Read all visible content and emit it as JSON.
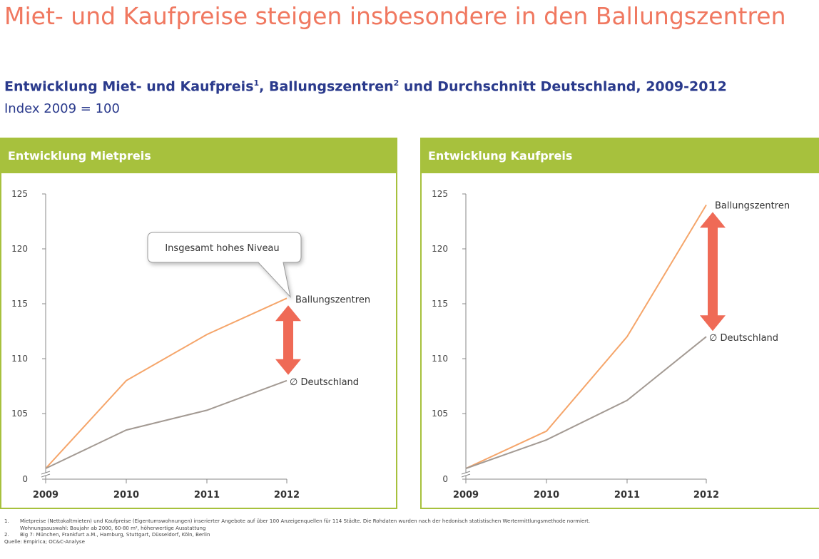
{
  "title": "Miet- und Kaufpreise steigen insbesondere in den Ballungszentren",
  "subtitle": {
    "part1": "Entwicklung Miet- und Kaufpreis",
    "sup1": "1",
    "part2": ", Ballungszentren",
    "sup2": "2",
    "part3": " und Durchschnitt Deutschland, 2009-2012"
  },
  "index_note": "Index 2009 = 100",
  "colors": {
    "accent": "#a7c13d",
    "ballungszentren": "#f5a56a",
    "deutschland": "#a39a93",
    "arrow": "#ef6a56",
    "title": "#f07860",
    "subtitle": "#2a3a8c"
  },
  "chart_data": [
    {
      "type": "line",
      "title": "Entwicklung Mietpreis",
      "x": [
        "2009",
        "2010",
        "2011",
        "2012"
      ],
      "y_ticks": [
        "0",
        "105",
        "110",
        "115",
        "120",
        "125"
      ],
      "ylim": [
        100,
        125
      ],
      "axis_break": true,
      "series": [
        {
          "name": "Ballungszentren",
          "values": [
            100,
            108.0,
            112.2,
            115.5
          ]
        },
        {
          "name": "∅ Deutschland",
          "values": [
            100,
            103.5,
            105.3,
            108.0
          ]
        }
      ],
      "annotations": [
        "Insgesamt hohes Niveau"
      ]
    },
    {
      "type": "line",
      "title": "Entwicklung Kaufpreis",
      "x": [
        "2009",
        "2010",
        "2011",
        "2012"
      ],
      "y_ticks": [
        "0",
        "105",
        "110",
        "115",
        "120",
        "125"
      ],
      "ylim": [
        100,
        125
      ],
      "axis_break": true,
      "series": [
        {
          "name": "Ballungszentren",
          "values": [
            100,
            103.4,
            112.0,
            124.0
          ]
        },
        {
          "name": "∅ Deutschland",
          "values": [
            100,
            102.6,
            106.2,
            112.0
          ]
        }
      ]
    }
  ],
  "footnotes": [
    {
      "num": "1.",
      "text": "Mietpreise (Nettokaltmieten) und Kaufpreise (Eigentumswohnungen) inserierter Angebote auf über 100 Anzeigenquellen für 114 Städte. Die Rohdaten wurden nach der hedonisch statistischen Wertermittlungsmethode normiert."
    },
    {
      "num": "",
      "text": "Wohnungsauswahl: Baujahr ab 2000, 60-80 m², höherwertige Ausstattung"
    },
    {
      "num": "2.",
      "text": "Big 7: München, Frankfurt a.M., Hamburg, Stuttgart, Düsseldorf, Köln, Berlin"
    },
    {
      "num": "",
      "text": "Quelle: Empirica; OC&C-Analyse"
    }
  ]
}
